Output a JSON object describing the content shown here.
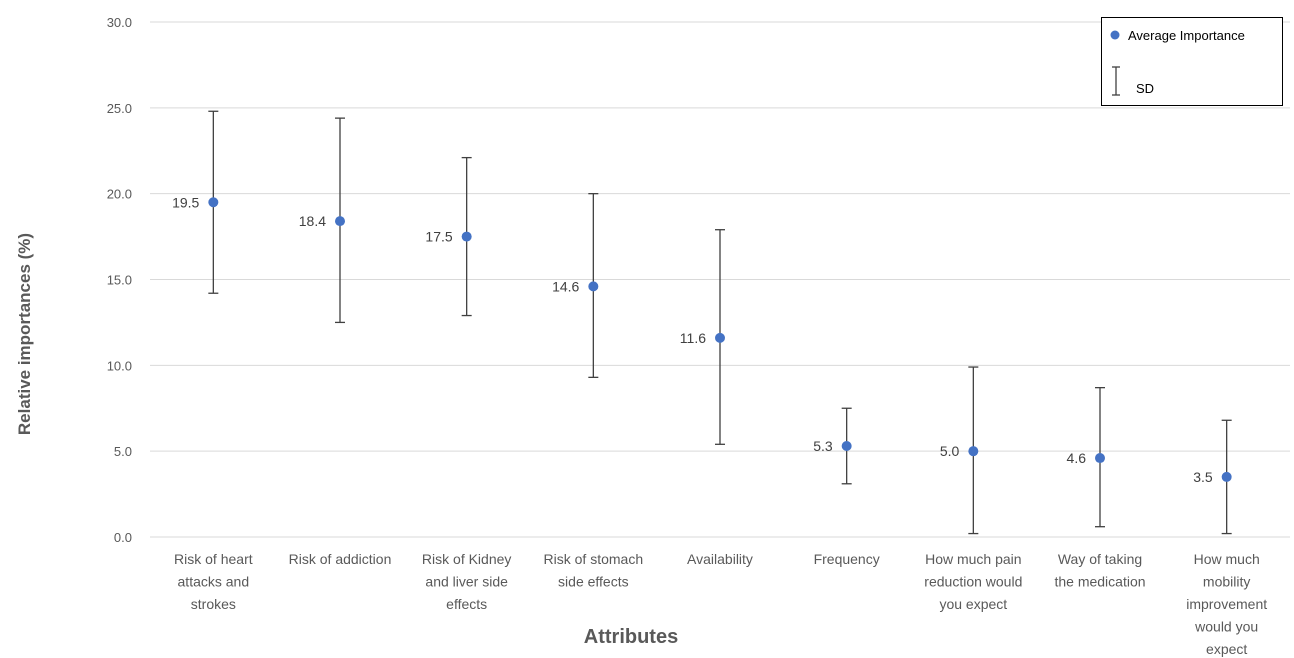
{
  "chart_data": {
    "type": "scatter",
    "xlabel": "Attributes",
    "ylabel": "Relative importances (%)",
    "ylim": [
      0,
      30
    ],
    "yticks": [
      "0.0",
      "5.0",
      "10.0",
      "15.0",
      "20.0",
      "25.0",
      "30.0"
    ],
    "grid": true,
    "legend_position": "top-right",
    "legend": {
      "point_label": "Average Importance",
      "error_label": "SD"
    },
    "point_color": "#4472c4",
    "categories": [
      [
        "Risk of heart",
        "attacks and",
        "strokes"
      ],
      [
        "Risk of addiction"
      ],
      [
        "Risk of Kidney",
        "and liver side",
        "effects"
      ],
      [
        "Risk of stomach",
        "side effects"
      ],
      [
        "Availability"
      ],
      [
        "Frequency"
      ],
      [
        "How much pain",
        "reduction would",
        "you expect"
      ],
      [
        "Way of taking",
        "the medication"
      ],
      [
        "How much",
        "mobility",
        "improvement",
        "would you",
        "expect"
      ]
    ],
    "values": [
      19.5,
      18.4,
      17.5,
      14.6,
      11.6,
      5.3,
      5.0,
      4.6,
      3.5
    ],
    "value_labels": [
      "19.5",
      "18.4",
      "17.5",
      "14.6",
      "11.6",
      "5.3",
      "5.0",
      "4.6",
      "3.5"
    ],
    "sd_low": [
      14.2,
      12.5,
      12.9,
      9.3,
      5.4,
      3.1,
      0.2,
      0.6,
      0.2
    ],
    "sd_high": [
      24.8,
      24.4,
      22.1,
      20.0,
      17.9,
      7.5,
      9.9,
      8.7,
      6.8
    ]
  }
}
